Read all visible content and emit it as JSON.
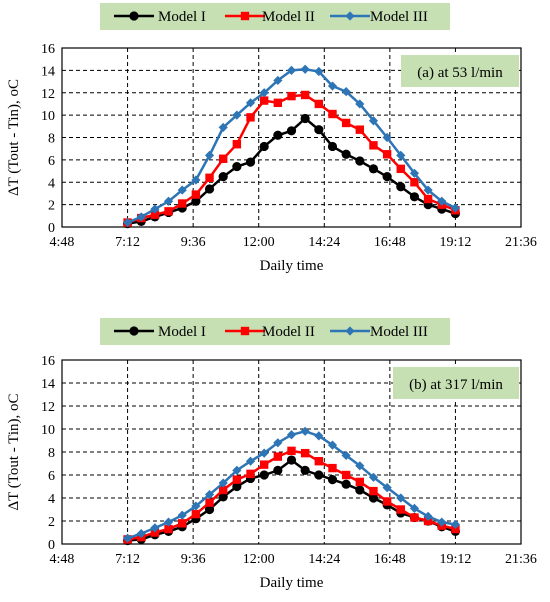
{
  "colors": {
    "legend_bg": "#c6e0b4",
    "annotation_bg": "#c6e0b4",
    "grid": "#000000",
    "series": [
      "#000000",
      "#ff0000",
      "#2e75b6"
    ]
  },
  "chart_data": [
    {
      "type": "line",
      "annotation": "(a) at 53 l/min",
      "xlabel": "Daily time",
      "ylabel": "ΔT (Tout - Tin), oC",
      "xlim": [
        "04:48",
        "21:36"
      ],
      "ylim": [
        0,
        16
      ],
      "x_ticks": [
        "4:48",
        "7:12",
        "9:36",
        "12:00",
        "14:24",
        "16:48",
        "19:12",
        "21:36"
      ],
      "y_ticks": [
        "0",
        "2",
        "4",
        "6",
        "8",
        "10",
        "12",
        "14",
        "16"
      ],
      "grid": "dashed",
      "legend_position": "top",
      "x": [
        "07:12",
        "07:42",
        "08:12",
        "08:42",
        "09:12",
        "09:42",
        "10:12",
        "10:42",
        "11:12",
        "11:42",
        "12:12",
        "12:42",
        "13:12",
        "13:42",
        "14:12",
        "14:42",
        "15:12",
        "15:42",
        "16:12",
        "16:42",
        "17:12",
        "17:42",
        "18:12",
        "18:42",
        "19:12"
      ],
      "series": [
        {
          "name": "Model I",
          "marker": "circle",
          "values": [
            0.3,
            0.5,
            0.9,
            1.3,
            1.7,
            2.3,
            3.4,
            4.5,
            5.4,
            5.8,
            7.2,
            8.2,
            8.6,
            9.7,
            8.7,
            7.2,
            6.5,
            5.9,
            5.2,
            4.5,
            3.6,
            2.7,
            2.0,
            1.6,
            1.2
          ]
        },
        {
          "name": "Model II",
          "marker": "square",
          "values": [
            0.4,
            0.8,
            1.1,
            1.4,
            2.1,
            2.9,
            4.4,
            6.1,
            7.4,
            9.8,
            11.3,
            11.1,
            11.7,
            11.8,
            11.0,
            10.1,
            9.3,
            8.7,
            7.3,
            6.5,
            5.2,
            4.0,
            2.5,
            2.0,
            1.5
          ]
        },
        {
          "name": "Model III",
          "marker": "diamond",
          "values": [
            0.4,
            0.9,
            1.6,
            2.3,
            3.3,
            4.2,
            6.4,
            8.9,
            10.0,
            11.1,
            12.0,
            13.1,
            14.0,
            14.1,
            13.9,
            12.6,
            12.1,
            11.0,
            9.5,
            8.0,
            6.4,
            4.8,
            3.3,
            2.3,
            1.7
          ]
        }
      ]
    },
    {
      "type": "line",
      "annotation": "(b) at 317 l/min",
      "xlabel": "Daily time",
      "ylabel": "ΔT (Tout - Tin), oC",
      "xlim": [
        "04:48",
        "21:36"
      ],
      "ylim": [
        0,
        16
      ],
      "x_ticks": [
        "4:48",
        "7:12",
        "9:36",
        "12:00",
        "14:24",
        "16:48",
        "19:12",
        "21:36"
      ],
      "y_ticks": [
        "0",
        "2",
        "4",
        "6",
        "8",
        "10",
        "12",
        "14",
        "16"
      ],
      "grid": "dashed",
      "legend_position": "top",
      "x": [
        "07:12",
        "07:42",
        "08:12",
        "08:42",
        "09:12",
        "09:42",
        "10:12",
        "10:42",
        "11:12",
        "11:42",
        "12:12",
        "12:42",
        "13:12",
        "13:42",
        "14:12",
        "14:42",
        "15:12",
        "15:42",
        "16:12",
        "16:42",
        "17:12",
        "17:42",
        "18:12",
        "18:42",
        "19:12"
      ],
      "series": [
        {
          "name": "Model I",
          "marker": "circle",
          "values": [
            0.3,
            0.4,
            0.8,
            1.1,
            1.5,
            2.2,
            3.0,
            4.1,
            5.0,
            5.7,
            6.0,
            6.4,
            7.3,
            6.4,
            6.0,
            5.6,
            5.2,
            4.7,
            4.0,
            3.4,
            2.7,
            2.3,
            2.0,
            1.5,
            1.1
          ]
        },
        {
          "name": "Model II",
          "marker": "square",
          "values": [
            0.4,
            0.6,
            1.0,
            1.3,
            1.8,
            2.6,
            3.6,
            4.7,
            5.6,
            6.1,
            6.9,
            7.6,
            8.1,
            7.9,
            7.2,
            6.6,
            6.0,
            5.4,
            4.6,
            3.7,
            3.0,
            2.3,
            2.0,
            1.6,
            1.3
          ]
        },
        {
          "name": "Model III",
          "marker": "diamond",
          "values": [
            0.5,
            0.9,
            1.4,
            1.9,
            2.5,
            3.3,
            4.3,
            5.3,
            6.4,
            7.2,
            7.9,
            8.8,
            9.5,
            9.8,
            9.4,
            8.6,
            7.7,
            6.8,
            5.8,
            4.9,
            4.0,
            3.1,
            2.4,
            1.9,
            1.7
          ]
        }
      ]
    }
  ]
}
